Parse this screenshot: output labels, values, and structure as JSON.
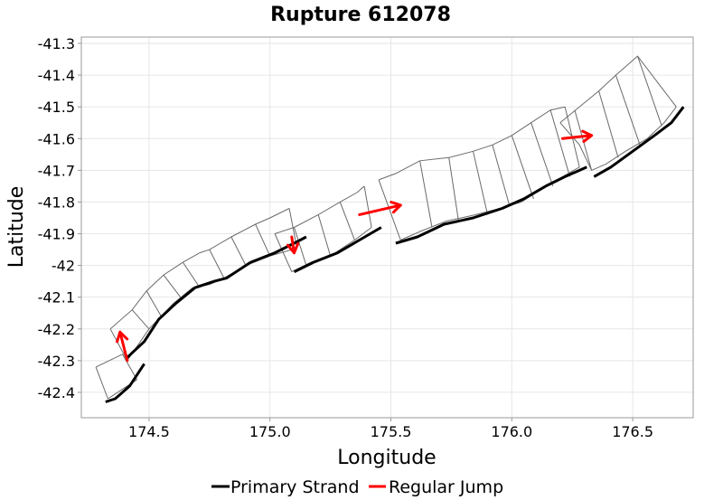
{
  "chart_data": {
    "type": "map",
    "title": "Rupture 612078",
    "xlabel": "Longitude",
    "ylabel": "Latitude",
    "xlim": [
      174.22,
      176.75
    ],
    "ylim": [
      -42.48,
      -41.28
    ],
    "xticks": [
      174.5,
      175.0,
      175.5,
      176.0,
      176.5
    ],
    "xtick_labels": [
      "174.5",
      "175.0",
      "175.5",
      "176.0",
      "176.5"
    ],
    "yticks": [
      -41.3,
      -41.4,
      -41.5,
      -41.6,
      -41.7,
      -41.8,
      -41.9,
      -42.0,
      -42.1,
      -42.2,
      -42.3,
      -42.4
    ],
    "ytick_labels": [
      "-41.3",
      "-41.4",
      "-41.5",
      "-41.6",
      "-41.7",
      "-41.8",
      "-41.9",
      "-42",
      "-42.1",
      "-42.2",
      "-42.3",
      "-42.4"
    ],
    "grid": true,
    "legend": {
      "position": "bottom-center",
      "entries": [
        {
          "name": "Primary Strand",
          "color": "#000000"
        },
        {
          "name": "Regular Jump",
          "color": "#ff0000"
        }
      ]
    },
    "section_outlines": [
      {
        "segments": [
          [
            [
              174.28,
              -42.32
            ],
            [
              174.39,
              -42.28
            ]
          ],
          [
            [
              174.33,
              -42.42
            ],
            [
              174.45,
              -42.36
            ]
          ],
          [
            [
              174.28,
              -42.32
            ],
            [
              174.33,
              -42.42
            ]
          ],
          [
            [
              174.39,
              -42.28
            ],
            [
              174.45,
              -42.36
            ]
          ]
        ]
      },
      {
        "segments": [
          [
            [
              174.34,
              -42.2
            ],
            [
              174.43,
              -42.14
            ],
            [
              174.49,
              -42.08
            ],
            [
              174.56,
              -42.03
            ],
            [
              174.64,
              -41.99
            ],
            [
              174.71,
              -41.96
            ],
            [
              174.75,
              -41.95
            ],
            [
              174.84,
              -41.91
            ],
            [
              174.94,
              -41.87
            ],
            [
              175.0,
              -41.85
            ],
            [
              175.08,
              -41.82
            ]
          ],
          [
            [
              174.41,
              -42.3
            ],
            [
              174.5,
              -42.2
            ],
            [
              174.6,
              -42.12
            ],
            [
              174.68,
              -42.07
            ],
            [
              174.75,
              -42.06
            ],
            [
              174.81,
              -42.04
            ],
            [
              174.9,
              -42.0
            ],
            [
              175.0,
              -41.97
            ],
            [
              175.09,
              -41.95
            ],
            [
              175.11,
              -41.94
            ]
          ],
          [
            [
              174.34,
              -42.2
            ],
            [
              174.41,
              -42.3
            ]
          ],
          [
            [
              174.43,
              -42.14
            ],
            [
              174.5,
              -42.2
            ]
          ],
          [
            [
              174.49,
              -42.08
            ],
            [
              174.55,
              -42.16
            ]
          ],
          [
            [
              174.56,
              -42.03
            ],
            [
              174.63,
              -42.1
            ]
          ],
          [
            [
              174.64,
              -41.99
            ],
            [
              174.71,
              -42.07
            ]
          ],
          [
            [
              174.75,
              -41.95
            ],
            [
              174.81,
              -42.04
            ]
          ],
          [
            [
              174.84,
              -41.91
            ],
            [
              174.9,
              -42.0
            ]
          ],
          [
            [
              174.94,
              -41.87
            ],
            [
              175.0,
              -41.97
            ]
          ],
          [
            [
              175.08,
              -41.82
            ],
            [
              175.11,
              -41.94
            ]
          ]
        ]
      },
      {
        "segments": [
          [
            [
              175.02,
              -41.9
            ],
            [
              175.1,
              -41.88
            ],
            [
              175.2,
              -41.84
            ],
            [
              175.29,
              -41.8
            ],
            [
              175.36,
              -41.77
            ],
            [
              175.39,
              -41.75
            ]
          ],
          [
            [
              175.09,
              -42.02
            ],
            [
              175.17,
              -41.99
            ],
            [
              175.27,
              -41.96
            ],
            [
              175.35,
              -41.92
            ],
            [
              175.42,
              -41.88
            ]
          ],
          [
            [
              175.02,
              -41.9
            ],
            [
              175.09,
              -42.02
            ]
          ],
          [
            [
              175.1,
              -41.88
            ],
            [
              175.15,
              -42.0
            ]
          ],
          [
            [
              175.2,
              -41.84
            ],
            [
              175.25,
              -41.97
            ]
          ],
          [
            [
              175.29,
              -41.8
            ],
            [
              175.35,
              -41.92
            ]
          ],
          [
            [
              175.39,
              -41.75
            ],
            [
              175.42,
              -41.88
            ]
          ]
        ]
      },
      {
        "segments": [
          [
            [
              175.45,
              -41.73
            ],
            [
              175.52,
              -41.71
            ],
            [
              175.62,
              -41.67
            ],
            [
              175.74,
              -41.66
            ],
            [
              175.84,
              -41.64
            ],
            [
              175.92,
              -41.62
            ],
            [
              176.0,
              -41.59
            ],
            [
              176.08,
              -41.55
            ],
            [
              176.16,
              -41.51
            ],
            [
              176.22,
              -41.5
            ]
          ],
          [
            [
              175.54,
              -41.92
            ],
            [
              175.63,
              -41.89
            ],
            [
              175.73,
              -41.86
            ],
            [
              175.85,
              -41.84
            ],
            [
              175.95,
              -41.82
            ],
            [
              176.04,
              -41.8
            ],
            [
              176.12,
              -41.76
            ],
            [
              176.21,
              -41.72
            ],
            [
              176.28,
              -41.69
            ]
          ],
          [
            [
              175.45,
              -41.73
            ],
            [
              175.54,
              -41.92
            ]
          ],
          [
            [
              175.62,
              -41.67
            ],
            [
              175.67,
              -41.88
            ]
          ],
          [
            [
              175.74,
              -41.66
            ],
            [
              175.78,
              -41.86
            ]
          ],
          [
            [
              175.84,
              -41.64
            ],
            [
              175.9,
              -41.84
            ]
          ],
          [
            [
              175.92,
              -41.62
            ],
            [
              175.99,
              -41.81
            ]
          ],
          [
            [
              176.0,
              -41.59
            ],
            [
              176.09,
              -41.79
            ]
          ],
          [
            [
              176.08,
              -41.55
            ],
            [
              176.17,
              -41.75
            ]
          ],
          [
            [
              176.16,
              -41.51
            ],
            [
              176.24,
              -41.72
            ]
          ],
          [
            [
              176.22,
              -41.5
            ],
            [
              176.28,
              -41.69
            ]
          ]
        ]
      },
      {
        "segments": [
          [
            [
              176.2,
              -41.55
            ],
            [
              176.36,
              -41.45
            ],
            [
              176.43,
              -41.4
            ],
            [
              176.52,
              -41.34
            ],
            [
              176.68,
              -41.5
            ]
          ],
          [
            [
              176.2,
              -41.55
            ],
            [
              176.28,
              -41.62
            ],
            [
              176.33,
              -41.7
            ],
            [
              176.39,
              -41.68
            ],
            [
              176.47,
              -41.64
            ],
            [
              176.56,
              -41.6
            ],
            [
              176.63,
              -41.55
            ],
            [
              176.68,
              -41.5
            ]
          ],
          [
            [
              176.26,
              -41.51
            ],
            [
              176.33,
              -41.7
            ]
          ],
          [
            [
              176.36,
              -41.45
            ],
            [
              176.44,
              -41.66
            ]
          ],
          [
            [
              176.43,
              -41.4
            ],
            [
              176.53,
              -41.62
            ]
          ],
          [
            [
              176.52,
              -41.34
            ],
            [
              176.62,
              -41.56
            ]
          ]
        ]
      }
    ],
    "primary_strand": [
      [
        [
          174.32,
          -42.43
        ],
        [
          174.36,
          -42.42
        ],
        [
          174.42,
          -42.38
        ],
        [
          174.48,
          -42.31
        ]
      ],
      [
        [
          174.41,
          -42.29
        ],
        [
          174.48,
          -42.24
        ],
        [
          174.54,
          -42.17
        ],
        [
          174.61,
          -42.12
        ],
        [
          174.69,
          -42.07
        ],
        [
          174.77,
          -42.05
        ],
        [
          174.82,
          -42.04
        ],
        [
          174.92,
          -41.99
        ],
        [
          175.02,
          -41.96
        ],
        [
          175.1,
          -41.93
        ],
        [
          175.15,
          -41.91
        ]
      ],
      [
        [
          175.1,
          -42.02
        ],
        [
          175.18,
          -41.99
        ],
        [
          175.28,
          -41.96
        ],
        [
          175.37,
          -41.92
        ],
        [
          175.46,
          -41.88
        ]
      ],
      [
        [
          175.52,
          -41.93
        ],
        [
          175.61,
          -41.91
        ],
        [
          175.72,
          -41.87
        ],
        [
          175.84,
          -41.85
        ],
        [
          175.96,
          -41.82
        ],
        [
          176.05,
          -41.79
        ],
        [
          176.14,
          -41.75
        ],
        [
          176.22,
          -41.72
        ],
        [
          176.28,
          -41.7
        ],
        [
          176.31,
          -41.69
        ]
      ],
      [
        [
          176.34,
          -41.72
        ],
        [
          176.41,
          -41.69
        ],
        [
          176.5,
          -41.64
        ],
        [
          176.59,
          -41.59
        ],
        [
          176.66,
          -41.55
        ],
        [
          176.71,
          -41.5
        ]
      ]
    ],
    "jumps": [
      {
        "from": [
          174.41,
          -42.3
        ],
        "to": [
          174.38,
          -42.21
        ]
      },
      {
        "from": [
          175.09,
          -41.91
        ],
        "to": [
          175.1,
          -41.96
        ]
      },
      {
        "from": [
          175.37,
          -41.84
        ],
        "to": [
          175.54,
          -41.81
        ]
      },
      {
        "from": [
          176.21,
          -41.6
        ],
        "to": [
          176.33,
          -41.59
        ]
      }
    ]
  }
}
